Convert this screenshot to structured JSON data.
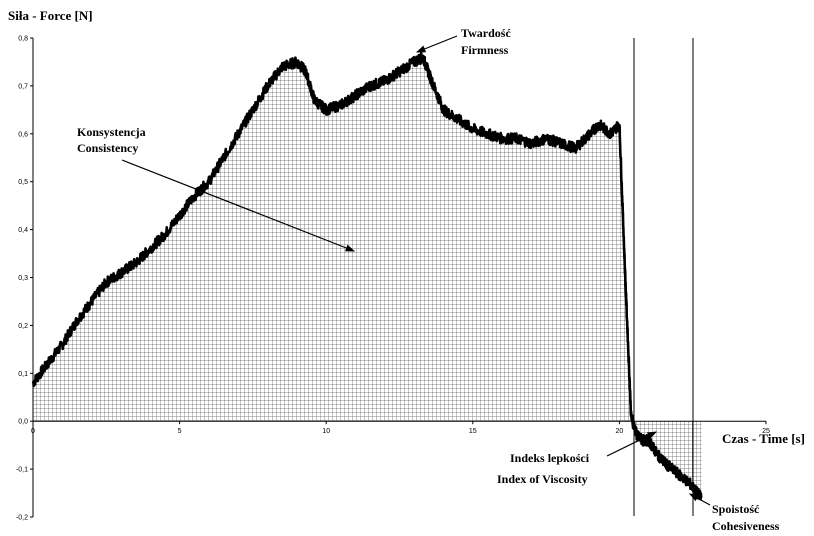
{
  "chart_data": {
    "type": "line",
    "ylabel": "Siła - Force [N]",
    "xlabel": "Czas - Time [s]",
    "xlim": [
      0,
      25
    ],
    "ylim": [
      -0.2,
      0.8
    ],
    "x_ticks": [
      "0",
      "5",
      "10",
      "15",
      "20",
      "25"
    ],
    "y_ticks": [
      "-0,2",
      "-0,1",
      "0,0",
      "0,1",
      "0,2",
      "0,3",
      "0,4",
      "0,5",
      "0,6",
      "0,7",
      "0,8"
    ],
    "series": [
      {
        "x": [
          0,
          0.5,
          1,
          1.5,
          2,
          2.5,
          3,
          3.5,
          4,
          4.5,
          5,
          5.5,
          6,
          6.5,
          7,
          7.5,
          8,
          8.5,
          9,
          9.3,
          9.6,
          10,
          10.5,
          11,
          11.5,
          12,
          12.5,
          13,
          13.3,
          13.6,
          14,
          14.5,
          15,
          15.5,
          16,
          16.5,
          17,
          17.5,
          18,
          18.5,
          19,
          19.3,
          19.7,
          20,
          20.2,
          20.4,
          20.6,
          20.8,
          21,
          21.3,
          21.6,
          22,
          22.4,
          22.8
        ],
        "y": [
          0.08,
          0.12,
          0.16,
          0.21,
          0.25,
          0.29,
          0.31,
          0.33,
          0.36,
          0.39,
          0.43,
          0.47,
          0.5,
          0.55,
          0.6,
          0.65,
          0.7,
          0.74,
          0.75,
          0.73,
          0.67,
          0.65,
          0.66,
          0.68,
          0.7,
          0.71,
          0.73,
          0.75,
          0.76,
          0.71,
          0.65,
          0.63,
          0.61,
          0.6,
          0.59,
          0.59,
          0.58,
          0.59,
          0.58,
          0.57,
          0.6,
          0.62,
          0.6,
          0.62,
          0.3,
          0.01,
          -0.03,
          -0.04,
          -0.04,
          -0.07,
          -0.09,
          -0.11,
          -0.13,
          -0.16
        ]
      }
    ],
    "annotations": [
      {
        "line1": "Twardość",
        "line2": "Firmness"
      },
      {
        "line1": "Konsystencja",
        "line2": "Consistency"
      },
      {
        "line1": "Indeks lepkości",
        "line2": "Index of Viscosity"
      },
      {
        "line1": "Spoistość",
        "line2": "Cohesiveness"
      }
    ],
    "grid": false,
    "shaded_areas": [
      "consistency",
      "viscosity-index"
    ]
  }
}
